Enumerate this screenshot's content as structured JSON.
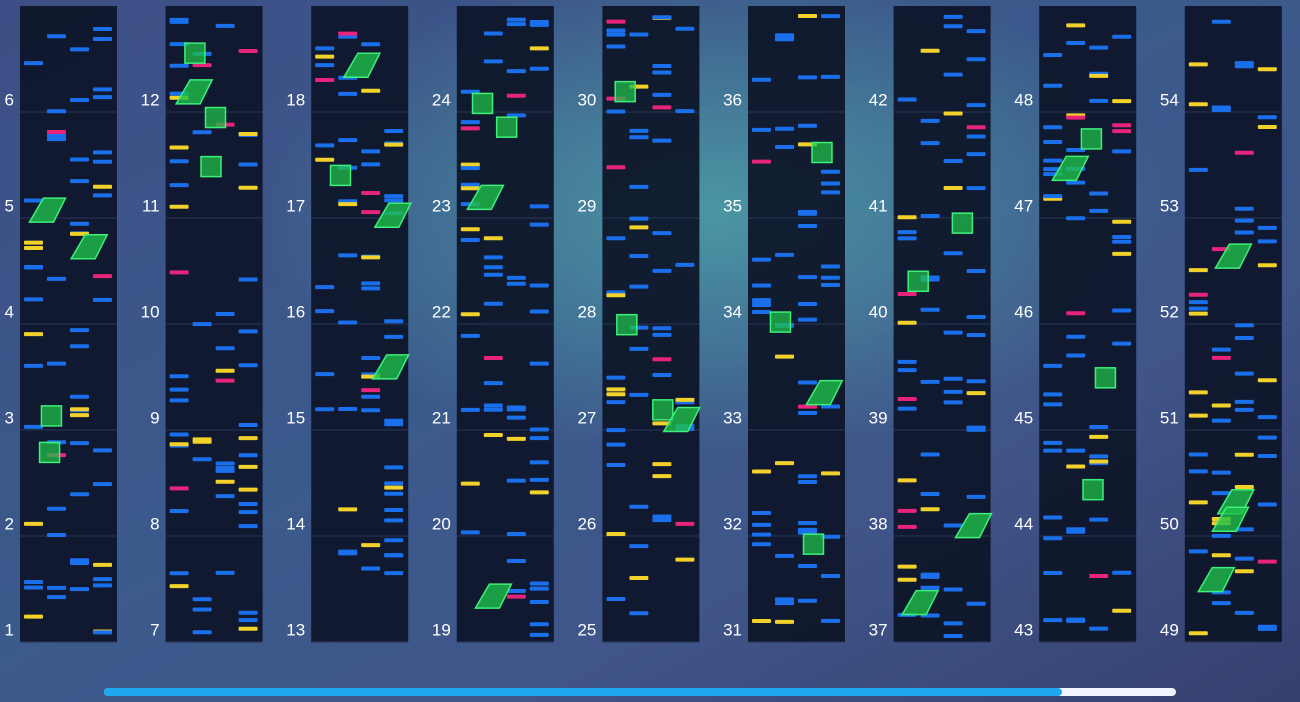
{
  "columns": [
    {
      "measures": [
        "1",
        "2",
        "3",
        "4",
        "5",
        "6"
      ]
    },
    {
      "measures": [
        "7",
        "8",
        "9",
        "10",
        "11",
        "12"
      ]
    },
    {
      "measures": [
        "13",
        "14",
        "15",
        "16",
        "17",
        "18"
      ]
    },
    {
      "measures": [
        "19",
        "20",
        "21",
        "22",
        "23",
        "24"
      ]
    },
    {
      "measures": [
        "25",
        "26",
        "27",
        "28",
        "29",
        "30"
      ]
    },
    {
      "measures": [
        "31",
        "32",
        "33",
        "34",
        "35",
        "36"
      ]
    },
    {
      "measures": [
        "37",
        "38",
        "39",
        "40",
        "41",
        "42"
      ]
    },
    {
      "measures": [
        "43",
        "44",
        "45",
        "46",
        "47",
        "48"
      ]
    },
    {
      "measures": [
        "49",
        "50",
        "51",
        "52",
        "53",
        "54"
      ]
    }
  ]
}
